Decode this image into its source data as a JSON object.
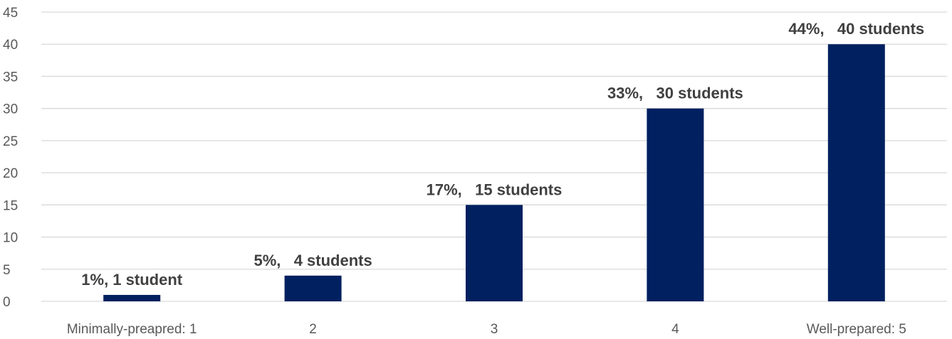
{
  "chart_data": {
    "type": "bar",
    "title": "",
    "xlabel": "",
    "ylabel": "",
    "categories": [
      "Minimally-preapred: 1",
      "2",
      "3",
      "4",
      "Well-prepared: 5"
    ],
    "values": [
      1,
      4,
      15,
      30,
      40
    ],
    "data_labels": [
      "1%, 1 student",
      "5%,   4 students",
      "17%,   15 students",
      "33%,   30 students",
      "44%,   40 students"
    ],
    "ylim": [
      0,
      45
    ],
    "yticks": [
      0,
      5,
      10,
      15,
      20,
      25,
      30,
      35,
      40,
      45
    ],
    "grid": true,
    "legend": "none",
    "bar_color": "#002060",
    "label_color": "#404040",
    "tick_color": "#595959",
    "grid_color": "#d9d9d9"
  }
}
